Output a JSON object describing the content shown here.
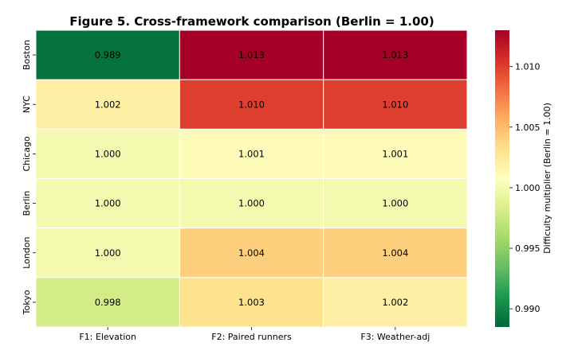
{
  "chart_data": {
    "type": "heatmap",
    "title": "Figure 5. Cross-framework comparison (Berlin = 1.00)",
    "x_categories": [
      "F1: Elevation",
      "F2: Paired runners",
      "F3: Weather-adj"
    ],
    "y_categories": [
      "Boston",
      "NYC",
      "Chicago",
      "Berlin",
      "London",
      "Tokyo"
    ],
    "values": [
      [
        0.989,
        1.013,
        1.013
      ],
      [
        1.002,
        1.01,
        1.01
      ],
      [
        1.0,
        1.001,
        1.001
      ],
      [
        1.0,
        1.0,
        1.0
      ],
      [
        1.0,
        1.004,
        1.004
      ],
      [
        0.998,
        1.003,
        1.002
      ]
    ],
    "value_labels": [
      [
        "0.989",
        "1.013",
        "1.013"
      ],
      [
        "1.002",
        "1.010",
        "1.010"
      ],
      [
        "1.000",
        "1.001",
        "1.001"
      ],
      [
        "1.000",
        "1.000",
        "1.000"
      ],
      [
        "1.000",
        "1.004",
        "1.004"
      ],
      [
        "0.998",
        "1.003",
        "1.002"
      ]
    ],
    "colormap": "RdYlGn_r",
    "color_range": [
      0.9885,
      1.013
    ],
    "colorbar": {
      "label": "Difficulty multiplier (Berlin = 1.00)",
      "ticks": [
        0.99,
        0.995,
        1.0,
        1.005,
        1.01
      ],
      "tick_labels": [
        "0.990",
        "0.995",
        "1.000",
        "1.005",
        "1.010"
      ]
    },
    "colors": {
      "low": "#0a8744",
      "mid": "#fefdbe",
      "high": "#a50026",
      "cell_border": "#ffffff"
    }
  }
}
